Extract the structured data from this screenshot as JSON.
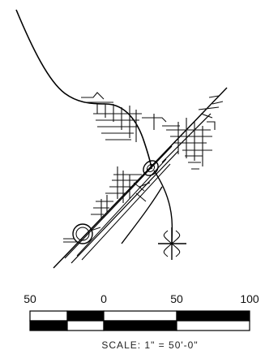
{
  "map": {
    "scale_bar": {
      "tick_labels": [
        "50",
        "0",
        "50",
        "100"
      ],
      "caption": "SCALE: 1\" = 50'-0\""
    }
  }
}
